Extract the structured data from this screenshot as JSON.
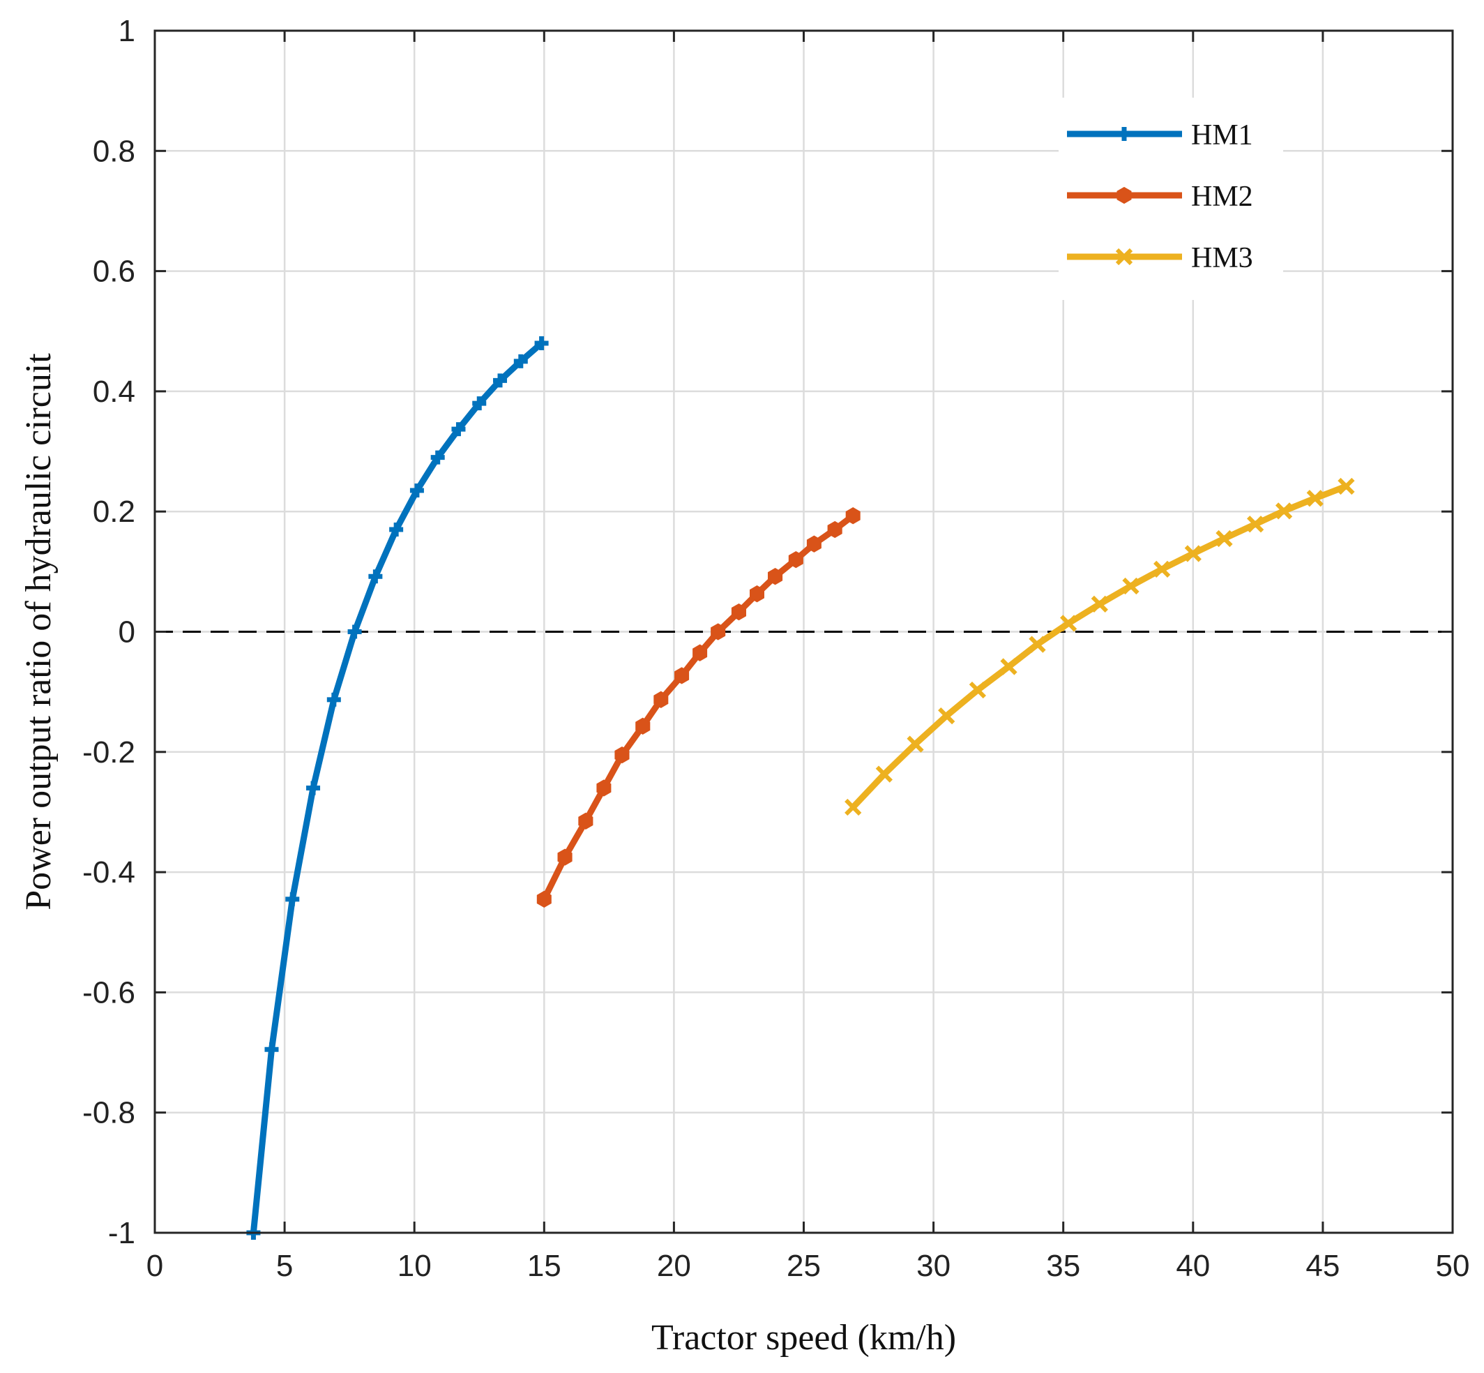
{
  "chart_data": {
    "type": "line",
    "title": "",
    "xlabel": "Tractor speed (km/h)",
    "ylabel": "Power output ratio of hydraulic circuit",
    "xlim": [
      0,
      50
    ],
    "ylim": [
      -1,
      1
    ],
    "xticks": [
      0,
      5,
      10,
      15,
      20,
      25,
      30,
      35,
      40,
      45,
      50
    ],
    "xtick_labels": [
      "0",
      "5",
      "10",
      "15",
      "20",
      "25",
      "30",
      "35",
      "40",
      "45",
      "50"
    ],
    "yticks": [
      -1,
      -0.8,
      -0.6,
      -0.4,
      -0.2,
      0,
      0.2,
      0.4,
      0.6,
      0.8,
      1
    ],
    "ytick_labels": [
      "-1",
      "-0.8",
      "-0.6",
      "-0.4",
      "-0.2",
      "0",
      "0.2",
      "0.4",
      "0.6",
      "0.8",
      "1"
    ],
    "grid": true,
    "legend_position": "top-right",
    "reference_line": {
      "y": 0,
      "style": "dashed",
      "color": "#000000"
    },
    "series": [
      {
        "name": "HM1",
        "color": "#0072BD",
        "marker": "plus",
        "x": [
          3.8,
          4.5,
          5.3,
          6.1,
          6.9,
          7.7,
          8.5,
          9.3,
          10.1,
          10.9,
          11.7,
          12.5,
          13.3,
          14.1,
          14.9
        ],
        "y": [
          -1.0,
          -0.695,
          -0.445,
          -0.26,
          -0.113,
          0.0,
          0.092,
          0.17,
          0.235,
          0.29,
          0.337,
          0.38,
          0.418,
          0.45,
          0.48
        ]
      },
      {
        "name": "HM2",
        "color": "#D95319",
        "marker": "hexagon",
        "x": [
          15.0,
          15.8,
          16.6,
          17.3,
          18.0,
          18.8,
          19.5,
          20.3,
          21.0,
          21.7,
          22.5,
          23.2,
          23.9,
          24.7,
          25.4,
          26.2,
          26.9
        ],
        "y": [
          -0.445,
          -0.375,
          -0.315,
          -0.26,
          -0.205,
          -0.157,
          -0.113,
          -0.073,
          -0.035,
          0.0,
          0.033,
          0.063,
          0.092,
          0.12,
          0.146,
          0.17,
          0.193
        ]
      },
      {
        "name": "HM3",
        "color": "#EDB120",
        "marker": "x",
        "x": [
          26.9,
          28.1,
          29.3,
          30.5,
          31.7,
          32.9,
          34.0,
          35.2,
          36.4,
          37.6,
          38.8,
          40.0,
          41.2,
          42.4,
          43.5,
          44.7,
          45.9
        ],
        "y": [
          -0.292,
          -0.237,
          -0.187,
          -0.14,
          -0.097,
          -0.058,
          -0.021,
          0.014,
          0.046,
          0.076,
          0.104,
          0.13,
          0.155,
          0.179,
          0.201,
          0.222,
          0.242
        ]
      }
    ]
  }
}
